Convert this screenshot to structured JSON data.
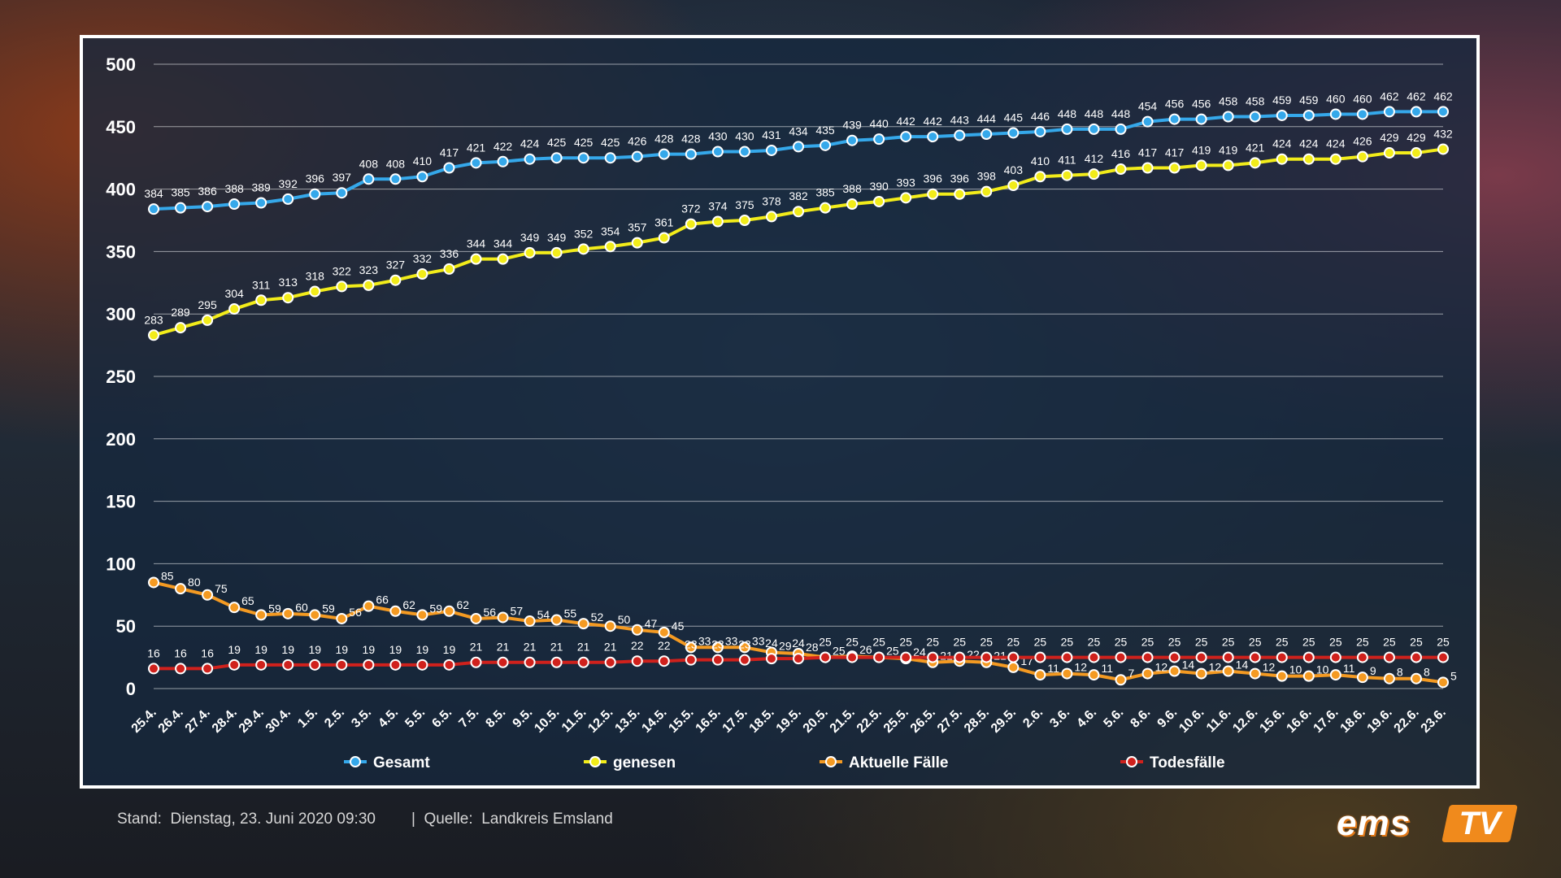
{
  "chart_data": {
    "type": "line",
    "ylim": [
      0,
      500
    ],
    "yticks": [
      0,
      50,
      100,
      150,
      200,
      250,
      300,
      350,
      400,
      450,
      500
    ],
    "grid": true,
    "legend_position": "bottom",
    "categories": [
      "25.4.",
      "26.4.",
      "27.4.",
      "28.4.",
      "29.4.",
      "30.4.",
      "1.5.",
      "2.5.",
      "3.5.",
      "4.5.",
      "5.5.",
      "6.5.",
      "7.5.",
      "8.5.",
      "9.5.",
      "10.5.",
      "11.5.",
      "12.5.",
      "13.5.",
      "14.5.",
      "15.5.",
      "16.5.",
      "17.5.",
      "18.5.",
      "19.5.",
      "20.5.",
      "21.5.",
      "22.5.",
      "25.5.",
      "26.5.",
      "27.5.",
      "28.5.",
      "29.5.",
      "2.6.",
      "3.6.",
      "4.6.",
      "5.6.",
      "8.6.",
      "9.6.",
      "10.6.",
      "11.6.",
      "12.6.",
      "15.6.",
      "16.6.",
      "17.6.",
      "18.6.",
      "19.6.",
      "22.6.",
      "23.6."
    ],
    "series": [
      {
        "name": "Gesamt",
        "color": "#35a8ea",
        "values": [
          384,
          385,
          386,
          388,
          389,
          392,
          396,
          397,
          408,
          408,
          410,
          417,
          421,
          422,
          424,
          425,
          425,
          425,
          426,
          428,
          428,
          430,
          430,
          431,
          434,
          435,
          439,
          440,
          442,
          442,
          443,
          444,
          445,
          446,
          448,
          448,
          448,
          454,
          456,
          456,
          458,
          458,
          459,
          459,
          460,
          460,
          462,
          462,
          462
        ]
      },
      {
        "name": "genesen",
        "color": "#f2ec1a",
        "values": [
          283,
          289,
          295,
          304,
          311,
          313,
          318,
          322,
          323,
          327,
          332,
          336,
          344,
          344,
          349,
          349,
          352,
          354,
          357,
          361,
          372,
          374,
          375,
          378,
          382,
          385,
          388,
          390,
          393,
          396,
          396,
          398,
          403,
          410,
          411,
          412,
          416,
          417,
          417,
          419,
          419,
          421,
          424,
          424,
          424,
          426,
          429,
          429,
          432
        ]
      },
      {
        "name": "Aktuelle Fälle",
        "color": "#f49a22",
        "values": [
          85,
          80,
          75,
          65,
          59,
          60,
          59,
          56,
          66,
          62,
          59,
          62,
          56,
          57,
          54,
          55,
          52,
          50,
          47,
          45,
          33,
          33,
          33,
          29,
          28,
          25,
          26,
          25,
          24,
          21,
          22,
          21,
          17,
          11,
          12,
          11,
          7,
          12,
          14,
          12,
          14,
          12,
          10,
          10,
          11,
          9,
          8,
          8,
          5
        ]
      },
      {
        "name": "Todesfälle",
        "color": "#d0211c",
        "values": [
          16,
          16,
          16,
          19,
          19,
          19,
          19,
          19,
          19,
          19,
          19,
          19,
          21,
          21,
          21,
          21,
          21,
          21,
          22,
          22,
          23,
          23,
          23,
          24,
          24,
          25,
          25,
          25,
          25,
          25,
          25,
          25,
          25,
          25,
          25,
          25,
          25,
          25,
          25,
          25,
          25,
          25,
          25,
          25,
          25,
          25,
          25,
          25,
          25
        ]
      }
    ]
  },
  "footer": {
    "stand": "Stand:  Dienstag, 23. Juni 2020 09:30",
    "quelle": "|  Quelle:  Landkreis Emsland"
  },
  "logo": {
    "ems": "ems",
    "tv": "TV",
    "color": "#f08a1c"
  }
}
